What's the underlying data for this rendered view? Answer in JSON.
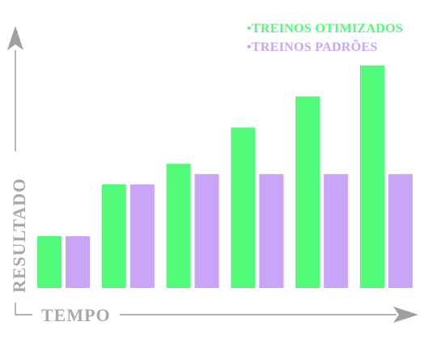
{
  "chart_data": {
    "type": "bar",
    "categories": [
      "",
      "",
      "",
      "",
      "",
      ""
    ],
    "series": [
      {
        "name": "TREINOS OTIMIZADOS",
        "values": [
          1.0,
          2.0,
          2.4,
          3.1,
          3.7,
          4.3
        ]
      },
      {
        "name": "TREINOS PADRÕES",
        "values": [
          1.0,
          2.0,
          2.2,
          2.2,
          2.2,
          2.2
        ]
      }
    ],
    "xlabel": "TEMPO",
    "ylabel": "RESULTADO",
    "ylim": [
      0,
      5
    ],
    "grid": false,
    "tick_labels": false,
    "legend": "top-right"
  },
  "legend": {
    "bullet": "•",
    "items": [
      {
        "label": "TREINOS OTIMIZADOS"
      },
      {
        "label": "TREINOS PADRÕES"
      }
    ]
  },
  "colors": {
    "series_1": "#52fb79",
    "series_2": "#c9a5f7",
    "axis": "#9b9b9b",
    "axis_text": "#a9a9a9"
  }
}
